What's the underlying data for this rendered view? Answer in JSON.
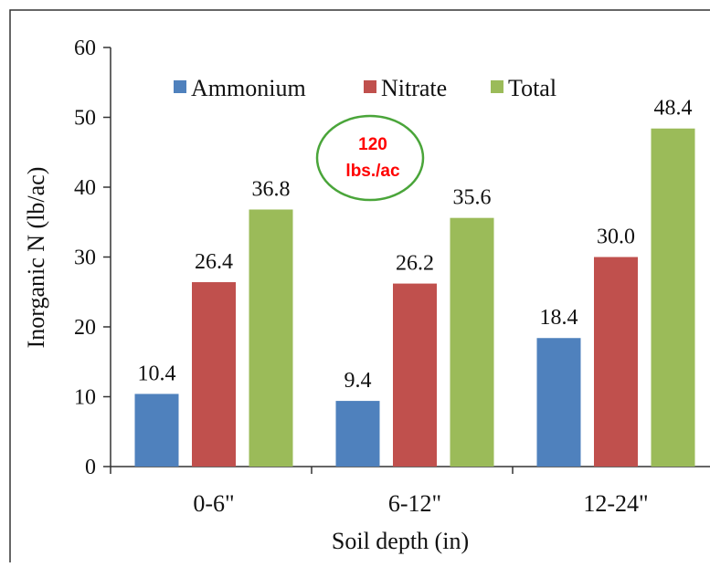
{
  "chart_data": {
    "type": "bar",
    "title": "",
    "xlabel": "Soil depth (in)",
    "ylabel": "Inorganic N (lb/ac)",
    "ylim": [
      0,
      60
    ],
    "yticks": [
      0,
      10,
      20,
      30,
      40,
      50,
      60
    ],
    "categories": [
      "0-6\"",
      "6-12\"",
      "12-24\""
    ],
    "series": [
      {
        "name": "Ammonium",
        "values": [
          10.4,
          9.4,
          18.4
        ],
        "color": "#4f81bd",
        "labels": [
          "10.4",
          "9.4",
          "18.4"
        ]
      },
      {
        "name": "Nitrate",
        "values": [
          26.4,
          26.2,
          30.0
        ],
        "color": "#c0504d",
        "labels": [
          "26.4",
          "26.2",
          "30.0"
        ]
      },
      {
        "name": "Total",
        "values": [
          36.8,
          35.6,
          48.4
        ],
        "color": "#9bbb59",
        "labels": [
          "36.8",
          "35.6",
          "48.4"
        ]
      }
    ],
    "legend_position": "top",
    "grid": false,
    "annotation": {
      "line1": "120",
      "line2": "lbs./ac",
      "text_color": "#ff0000",
      "border_color": "#4aa53a"
    }
  }
}
